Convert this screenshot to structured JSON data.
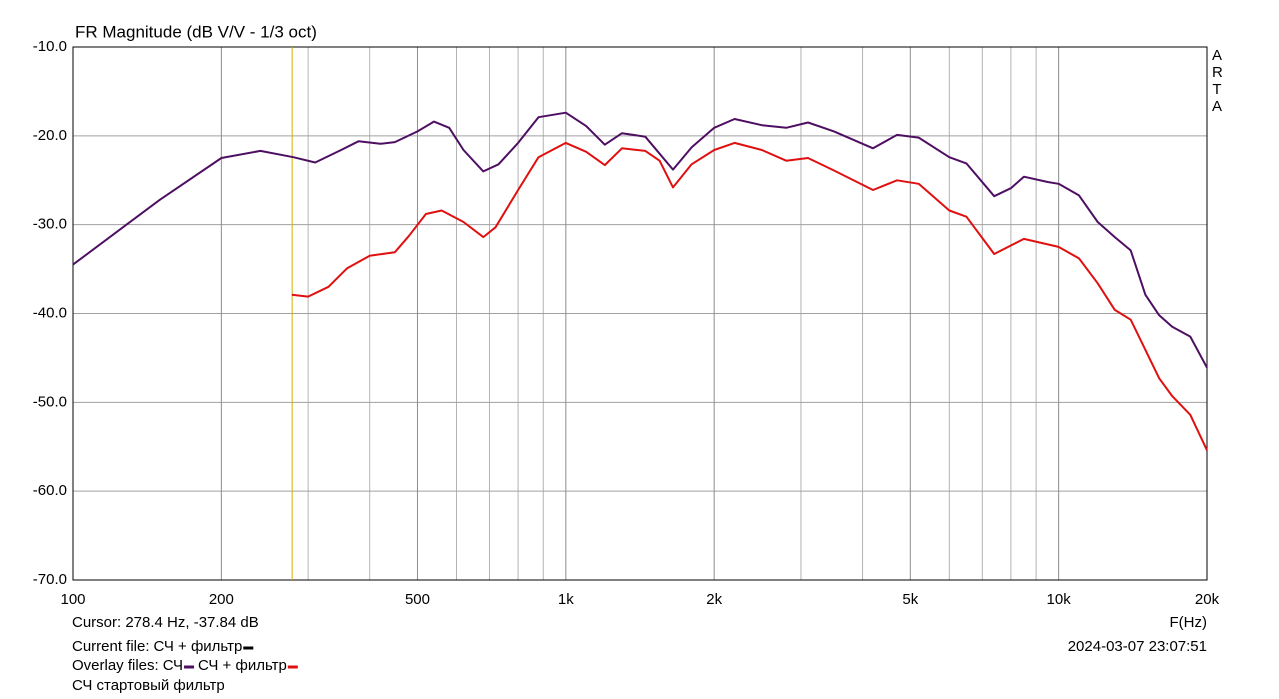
{
  "chart_data": {
    "type": "line",
    "title": "FR Magnitude (dB V/V - 1/3 oct)",
    "side_label": "ARTA",
    "x_label": "F(Hz)",
    "x_scale": "log",
    "xlim": [
      100,
      20000
    ],
    "ylim": [
      -70,
      -10
    ],
    "xticks": [
      100,
      200,
      500,
      {
        "value": 1000,
        "label": "1k"
      },
      {
        "value": 2000,
        "label": "2k"
      },
      {
        "value": 5000,
        "label": "5k"
      },
      {
        "value": 10000,
        "label": "10k"
      },
      {
        "value": 20000,
        "label": "20k"
      }
    ],
    "minor_xticks": [
      300,
      400,
      600,
      700,
      800,
      900,
      3000,
      4000,
      6000,
      7000,
      8000,
      9000
    ],
    "yticks": [
      {
        "value": -10,
        "label": "-10.0"
      },
      {
        "value": -20,
        "label": "-20.0"
      },
      {
        "value": -30,
        "label": "-30.0"
      },
      {
        "value": -40,
        "label": "-40.0"
      },
      {
        "value": -50,
        "label": "-50.0"
      },
      {
        "value": -60,
        "label": "-60.0"
      },
      {
        "value": -70,
        "label": "-70.0"
      }
    ],
    "grid": true,
    "cursor_x": 278.4,
    "cursor_color": "#d4b000",
    "cursor_text": "Cursor: 278.4 Hz, -37.84 dB",
    "current_file_label": "Current file:",
    "current_file": {
      "name": "СЧ + фильтр",
      "color": "#000000"
    },
    "overlay_label": "Overlay files:",
    "timestamp": "2024-03-07  23:07:51",
    "note": "СЧ стартовый фильтр",
    "series": [
      {
        "name": "СЧ",
        "color": "#4e0f62",
        "x": [
          100,
          150,
          200,
          240,
          280,
          310,
          350,
          380,
          420,
          450,
          500,
          540,
          580,
          620,
          680,
          730,
          800,
          880,
          1000,
          1100,
          1200,
          1300,
          1450,
          1650,
          1800,
          2000,
          2200,
          2500,
          2800,
          3100,
          3500,
          4200,
          4700,
          5200,
          6000,
          6500,
          7400,
          8000,
          8500,
          9500,
          10000,
          11000,
          12000,
          13000,
          14000,
          15000,
          16000,
          17000,
          18500,
          20000
        ],
        "values": [
          -34.5,
          -27.2,
          -22.5,
          -21.7,
          -22.4,
          -23.0,
          -21.6,
          -20.6,
          -20.9,
          -20.7,
          -19.5,
          -18.4,
          -19.1,
          -21.6,
          -24.0,
          -23.2,
          -20.8,
          -17.9,
          -17.4,
          -18.9,
          -21.0,
          -19.7,
          -20.1,
          -23.8,
          -21.3,
          -19.1,
          -18.1,
          -18.8,
          -19.1,
          -18.5,
          -19.5,
          -21.4,
          -19.9,
          -20.2,
          -22.4,
          -23.1,
          -26.8,
          -25.9,
          -24.6,
          -25.2,
          -25.4,
          -26.7,
          -29.7,
          -31.4,
          -32.9,
          -37.9,
          -40.2,
          -41.5,
          -42.6,
          -46.1
        ]
      },
      {
        "name": "СЧ + фильтр",
        "color": "#e01010",
        "x": [
          278,
          300,
          330,
          360,
          400,
          450,
          480,
          520,
          560,
          620,
          680,
          720,
          800,
          880,
          1000,
          1100,
          1200,
          1300,
          1450,
          1550,
          1650,
          1800,
          2000,
          2200,
          2500,
          2800,
          3100,
          3500,
          4200,
          4700,
          5200,
          6000,
          6500,
          7400,
          8500,
          10000,
          11000,
          12000,
          13000,
          14000,
          15000,
          16000,
          17000,
          18500,
          20000
        ],
        "values": [
          -37.9,
          -38.1,
          -37.0,
          -34.9,
          -33.5,
          -33.1,
          -31.3,
          -28.8,
          -28.4,
          -29.7,
          -31.4,
          -30.3,
          -26.1,
          -22.4,
          -20.8,
          -21.8,
          -23.3,
          -21.4,
          -21.7,
          -22.8,
          -25.8,
          -23.2,
          -21.6,
          -20.8,
          -21.6,
          -22.8,
          -22.5,
          -23.9,
          -26.1,
          -25.0,
          -25.4,
          -28.4,
          -29.1,
          -33.3,
          -31.6,
          -32.5,
          -33.8,
          -36.6,
          -39.6,
          -40.7,
          -44.1,
          -47.3,
          -49.3,
          -51.4,
          -55.4
        ]
      }
    ]
  }
}
